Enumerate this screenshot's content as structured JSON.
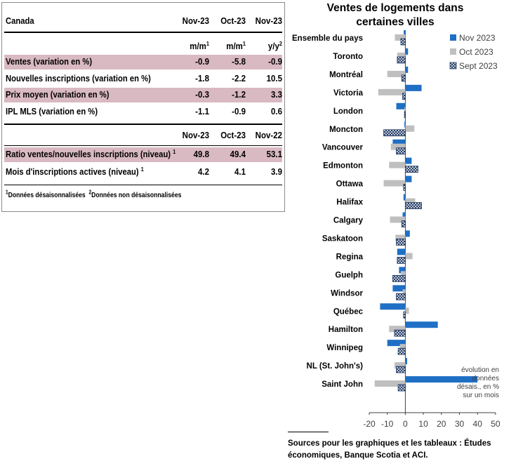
{
  "table": {
    "header": {
      "region": "Canada",
      "cols": [
        "Nov-23",
        "Oct-23",
        "Nov-23"
      ]
    },
    "units": [
      {
        "base": "m/m",
        "sup": "1"
      },
      {
        "base": "m/m",
        "sup": "1"
      },
      {
        "base": "y/y",
        "sup": "2"
      }
    ],
    "rows": [
      {
        "label": "Ventes (variation en %)",
        "values": [
          "-0.9",
          "-5.8",
          "-0.9"
        ],
        "shaded": true
      },
      {
        "label": "Nouvelles inscriptions (variation en %)",
        "values": [
          "-1.8",
          "-2.2",
          "10.5"
        ],
        "shaded": false
      },
      {
        "label": "Prix moyen (variation en %)",
        "values": [
          "-0.3",
          "-1.2",
          "3.3"
        ],
        "shaded": true
      },
      {
        "label": "IPL MLS (variation en %)",
        "values": [
          "-1.1",
          "-0.9",
          "0.6"
        ],
        "shaded": false
      }
    ],
    "header2": {
      "cols": [
        "Nov-23",
        "Oct-23",
        "Nov-22"
      ]
    },
    "rows2": [
      {
        "label": "Ratio ventes/nouvelles inscriptions (niveau)",
        "sup": "1",
        "values": [
          "49.8",
          "49.4",
          "53.1"
        ],
        "shaded": true
      },
      {
        "label": "Mois d'inscriptions actives (niveau)",
        "sup": "1",
        "values": [
          "4.2",
          "4.1",
          "3.9"
        ],
        "shaded": false
      }
    ],
    "footnote": {
      "n1": "1",
      "t1": "Données désaisonnalisées",
      "n2": "2",
      "t2": "Données non désaisonnalisées"
    }
  },
  "chart_data": {
    "type": "bar",
    "orientation": "horizontal",
    "title": "Ventes de logements dans certaines villes",
    "categories": [
      "Ensemble du pays",
      "Toronto",
      "Montréal",
      "Victoria",
      "London",
      "Moncton",
      "Vancouver",
      "Edmonton",
      "Ottawa",
      "Halifax",
      "Calgary",
      "Saskatoon",
      "Regina",
      "Guelph",
      "Windsor",
      "Québec",
      "Hamilton",
      "Winnipeg",
      "NL (St. John's)",
      "Saint John"
    ],
    "series": [
      {
        "name": "Nov 2023",
        "color": "#1f6fc5",
        "pattern": "solid",
        "values": [
          -0.9,
          1.5,
          1.5,
          9,
          -5,
          -0.5,
          -7,
          3.5,
          3.5,
          -1,
          -1.5,
          2.5,
          -4.5,
          -3.5,
          -7,
          -14,
          18,
          -10,
          1,
          40
        ]
      },
      {
        "name": "Oct 2023",
        "color": "#bfbfbf",
        "pattern": "solid",
        "values": [
          -5.8,
          -4.5,
          -10,
          -15,
          -0.5,
          5,
          -8,
          -9,
          -12,
          5.5,
          -8.5,
          -5.5,
          4,
          -2.5,
          -1.5,
          2,
          -9,
          -3,
          -6,
          -17
        ]
      },
      {
        "name": "Sept 2023",
        "color": "#1f3864",
        "pattern": "crosshatch",
        "values": [
          -2.5,
          -4.5,
          -2,
          -1.5,
          -0.5,
          -12,
          -5,
          7,
          -1,
          9,
          -2,
          -5,
          -4.5,
          -7,
          -5,
          -1,
          -6,
          -4,
          -5,
          -4
        ]
      }
    ],
    "x_ticks": [
      "-20",
      "-10",
      "0",
      "10",
      "20",
      "30",
      "40",
      "50"
    ],
    "xlim": [
      -20,
      50
    ],
    "legend_position": "top-right",
    "annotation": "évolution en données désais., en % sur un mois",
    "source": "Sources pour les graphiques et les tableaux : Études économiques, Banque Scotia et ACI."
  }
}
